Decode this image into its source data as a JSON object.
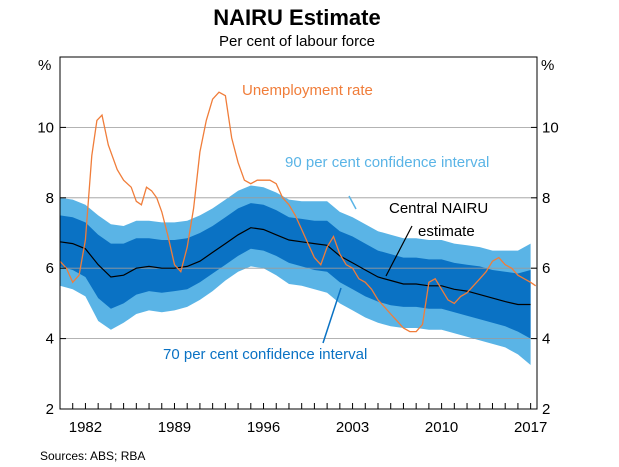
{
  "chart_data": {
    "type": "line",
    "title": "NAIRU Estimate",
    "subtitle": "Per cent of labour force",
    "unit": "%",
    "source": "Sources:   ABS; RBA",
    "xlim": [
      1980,
      2017.5
    ],
    "ylim": [
      2,
      12
    ],
    "y_ticks": [
      2,
      4,
      6,
      8,
      10
    ],
    "x_ticks": [
      1982,
      1989,
      1996,
      2003,
      2010,
      2017
    ],
    "colors": {
      "band90": "#5ab4e6",
      "band70": "#0a72c4",
      "nairu": "#000000",
      "unemployment": "#f07d3a",
      "grid": "#9a9a9a"
    },
    "annotations": {
      "unemployment": "Unemployment rate",
      "band90": "90 per cent confidence interval",
      "band70": "70 per cent confidence interval",
      "nairu_line1": "Central NAIRU",
      "nairu_line2": "estimate"
    },
    "x": [
      1980,
      1981,
      1982,
      1983,
      1984,
      1985,
      1986,
      1987,
      1988,
      1989,
      1990,
      1991,
      1992,
      1993,
      1994,
      1995,
      1996,
      1997,
      1998,
      1999,
      2000,
      2001,
      2002,
      2003,
      2004,
      2005,
      2006,
      2007,
      2008,
      2009,
      2010,
      2011,
      2012,
      2013,
      2014,
      2015,
      2016,
      2017
    ],
    "series": [
      {
        "name": "Central NAIRU estimate",
        "values": [
          6.75,
          6.7,
          6.55,
          6.1,
          5.75,
          5.8,
          6.0,
          6.05,
          6.0,
          6.0,
          6.05,
          6.2,
          6.45,
          6.7,
          6.95,
          7.15,
          7.1,
          6.95,
          6.8,
          6.75,
          6.7,
          6.65,
          6.35,
          6.15,
          5.95,
          5.75,
          5.65,
          5.55,
          5.55,
          5.5,
          5.5,
          5.4,
          5.35,
          5.25,
          5.15,
          5.05,
          4.97,
          4.97
        ]
      },
      {
        "name": "90 per cent lower",
        "values": [
          5.5,
          5.4,
          5.2,
          4.5,
          4.25,
          4.45,
          4.7,
          4.8,
          4.75,
          4.8,
          4.9,
          5.1,
          5.35,
          5.65,
          5.9,
          6.05,
          6.0,
          5.8,
          5.55,
          5.5,
          5.4,
          5.3,
          5.0,
          4.8,
          4.6,
          4.45,
          4.35,
          4.3,
          4.3,
          4.25,
          4.25,
          4.15,
          4.05,
          3.95,
          3.85,
          3.75,
          3.55,
          3.25
        ]
      },
      {
        "name": "70 per cent lower",
        "values": [
          6.05,
          5.95,
          5.75,
          5.15,
          4.85,
          5.0,
          5.25,
          5.35,
          5.3,
          5.35,
          5.4,
          5.6,
          5.85,
          6.1,
          6.35,
          6.55,
          6.5,
          6.35,
          6.15,
          6.05,
          5.95,
          5.9,
          5.6,
          5.4,
          5.2,
          5.05,
          4.95,
          4.9,
          4.9,
          4.85,
          4.85,
          4.75,
          4.65,
          4.55,
          4.45,
          4.35,
          4.2,
          4.0
        ]
      },
      {
        "name": "70 per cent upper",
        "values": [
          7.5,
          7.45,
          7.3,
          6.95,
          6.7,
          6.7,
          6.85,
          6.85,
          6.8,
          6.8,
          6.85,
          7.0,
          7.2,
          7.45,
          7.7,
          7.85,
          7.8,
          7.65,
          7.45,
          7.4,
          7.35,
          7.35,
          7.05,
          6.9,
          6.7,
          6.5,
          6.4,
          6.3,
          6.3,
          6.25,
          6.25,
          6.15,
          6.1,
          6.05,
          5.95,
          5.9,
          5.85,
          5.95
        ]
      },
      {
        "name": "90 per cent upper",
        "values": [
          8.0,
          7.95,
          7.8,
          7.5,
          7.25,
          7.2,
          7.35,
          7.35,
          7.3,
          7.3,
          7.35,
          7.5,
          7.7,
          7.95,
          8.2,
          8.35,
          8.3,
          8.15,
          7.95,
          7.9,
          7.9,
          7.9,
          7.6,
          7.45,
          7.25,
          7.05,
          6.95,
          6.85,
          6.85,
          6.8,
          6.8,
          6.7,
          6.65,
          6.6,
          6.5,
          6.5,
          6.5,
          6.7
        ]
      },
      {
        "name": "Unemployment rate",
        "x": [
          1980,
          1980.5,
          1981,
          1981.5,
          1982,
          1982.5,
          1982.9,
          1983.3,
          1983.8,
          1984.5,
          1985,
          1985.6,
          1986,
          1986.4,
          1986.8,
          1987.2,
          1987.6,
          1988,
          1988.5,
          1989,
          1989.5,
          1990,
          1990.5,
          1991,
          1991.5,
          1992,
          1992.5,
          1993,
          1993.5,
          1994,
          1994.5,
          1995,
          1995.5,
          1996,
          1996.5,
          1997,
          1997.5,
          1998,
          1998.5,
          1999,
          1999.5,
          2000,
          2000.5,
          2001,
          2001.5,
          2002,
          2002.5,
          2003,
          2003.5,
          2004,
          2004.5,
          2005,
          2005.5,
          2006,
          2006.5,
          2007,
          2007.5,
          2008,
          2008.5,
          2009,
          2009.5,
          2010,
          2010.5,
          2011,
          2011.5,
          2012,
          2012.5,
          2013,
          2013.5,
          2014,
          2014.5,
          2015,
          2015.5,
          2016,
          2016.5,
          2017,
          2017.4
        ],
        "values": [
          6.2,
          6.0,
          5.6,
          5.8,
          6.8,
          9.2,
          10.2,
          10.35,
          9.5,
          8.8,
          8.5,
          8.3,
          7.9,
          7.8,
          8.3,
          8.2,
          8.0,
          7.6,
          6.9,
          6.1,
          5.9,
          6.6,
          7.7,
          9.3,
          10.2,
          10.8,
          11.0,
          10.9,
          9.7,
          9.0,
          8.5,
          8.4,
          8.5,
          8.5,
          8.5,
          8.4,
          8.0,
          7.8,
          7.5,
          7.1,
          6.7,
          6.3,
          6.1,
          6.6,
          6.9,
          6.4,
          6.1,
          6.0,
          5.7,
          5.6,
          5.4,
          5.1,
          4.9,
          4.7,
          4.5,
          4.3,
          4.2,
          4.2,
          4.4,
          5.6,
          5.7,
          5.4,
          5.1,
          5.0,
          5.2,
          5.3,
          5.5,
          5.7,
          5.9,
          6.2,
          6.3,
          6.1,
          6.0,
          5.8,
          5.7,
          5.6,
          5.5
        ]
      }
    ]
  }
}
